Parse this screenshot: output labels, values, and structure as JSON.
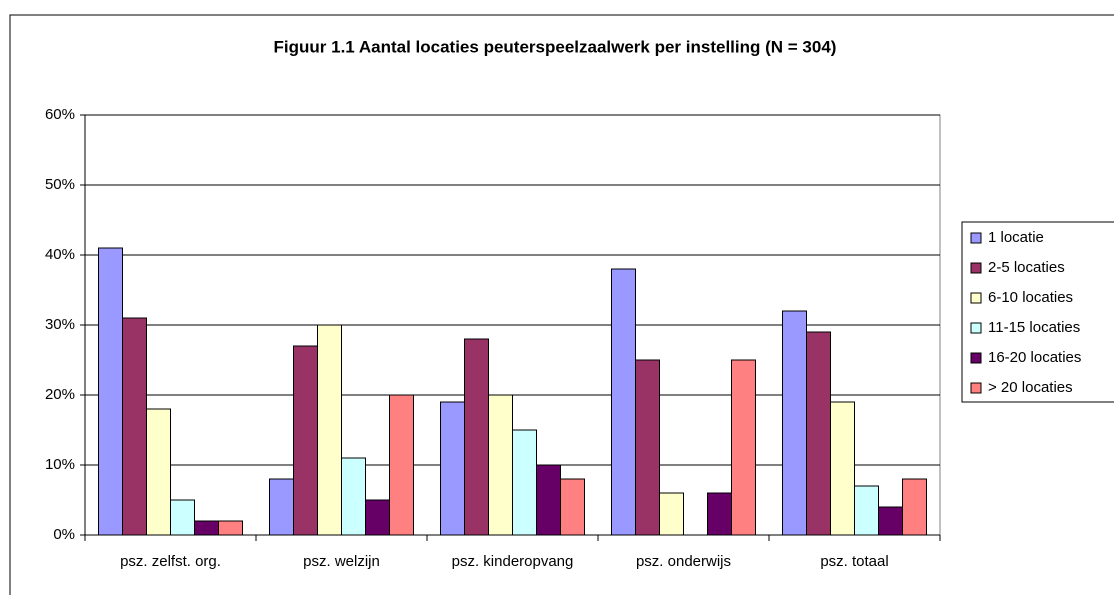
{
  "chart_data": {
    "type": "bar",
    "title": "Figuur 1.1  Aantal locaties peuterspeelzaalwerk per instelling (N = 304)",
    "categories": [
      "psz. zelfst. org.",
      "psz. welzijn",
      "psz. kinderopvang",
      "psz. onderwijs",
      "psz. totaal"
    ],
    "series": [
      {
        "name": "1 locatie",
        "color": "#9999ff",
        "values": [
          41,
          8,
          19,
          38,
          32
        ]
      },
      {
        "name": "2-5 locaties",
        "color": "#993366",
        "values": [
          31,
          27,
          28,
          25,
          29
        ]
      },
      {
        "name": "6-10 locaties",
        "color": "#ffffcc",
        "values": [
          18,
          30,
          20,
          6,
          19
        ]
      },
      {
        "name": "11-15 locaties",
        "color": "#ccffff",
        "values": [
          5,
          11,
          15,
          0,
          7
        ]
      },
      {
        "name": "16-20 locaties",
        "color": "#660066",
        "values": [
          2,
          5,
          10,
          6,
          4
        ]
      },
      {
        "name": "> 20 locaties",
        "color": "#ff8080",
        "values": [
          2,
          20,
          8,
          25,
          8
        ]
      }
    ],
    "ylim": [
      0,
      60
    ],
    "yticks": [
      {
        "value": 0,
        "label": "0%"
      },
      {
        "value": 10,
        "label": "10%"
      },
      {
        "value": 20,
        "label": "20%"
      },
      {
        "value": 30,
        "label": "30%"
      },
      {
        "value": 40,
        "label": "40%"
      },
      {
        "value": 50,
        "label": "50%"
      },
      {
        "value": 60,
        "label": "60%"
      }
    ],
    "grid": true,
    "legend": "right"
  }
}
